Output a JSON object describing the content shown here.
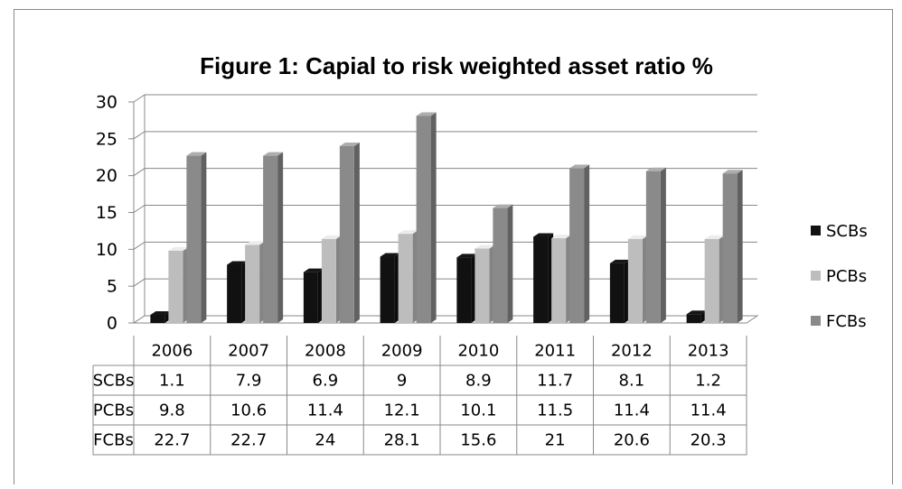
{
  "chart_data": {
    "type": "bar",
    "title": "Figure 1: Capial to risk weighted asset ratio %",
    "categories": [
      "2006",
      "2007",
      "2008",
      "2009",
      "2010",
      "2011",
      "2012",
      "2013"
    ],
    "series": [
      {
        "name": "SCBs",
        "color": "#111111",
        "values": [
          1.1,
          7.9,
          6.9,
          9,
          8.9,
          11.7,
          8.1,
          1.2
        ]
      },
      {
        "name": "PCBs",
        "color": "#bdbdbd",
        "values": [
          9.8,
          10.6,
          11.4,
          12.1,
          10.1,
          11.5,
          11.4,
          11.4
        ]
      },
      {
        "name": "FCBs",
        "color": "#8a8a8a",
        "values": [
          22.7,
          22.7,
          24,
          28.1,
          15.6,
          21,
          20.6,
          20.3
        ]
      }
    ],
    "ylim": [
      0,
      30
    ],
    "yticks": [
      0,
      5,
      10,
      15,
      20,
      25,
      30
    ],
    "grid": true,
    "legend": "right"
  }
}
